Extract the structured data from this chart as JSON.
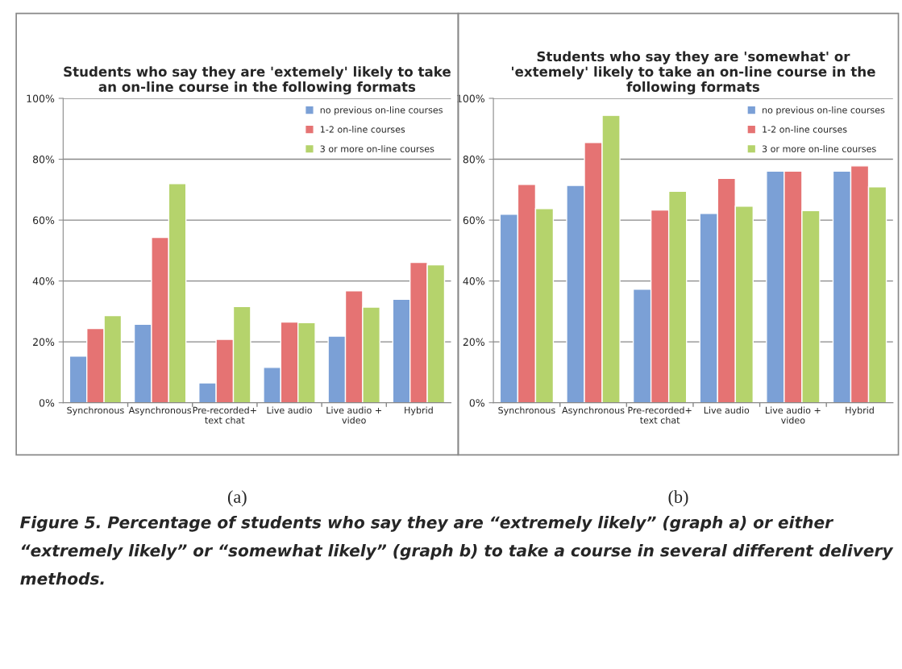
{
  "chart_data": [
    {
      "type": "bar",
      "title": "Students who say they are 'extemely' likely to take\nan on-line course in the following formats",
      "categories": [
        "Synchronous",
        "Asynchronous",
        "Pre-recorded+\ntext chat",
        "Live audio",
        "Live audio +\nvideo",
        "Hybrid"
      ],
      "series": [
        {
          "name": "no previous on-line courses",
          "color": "#7ba0d6",
          "values": [
            15.3,
            25.8,
            6.5,
            11.6,
            21.9,
            34
          ]
        },
        {
          "name": "1-2 on-line courses",
          "color": "#e57373",
          "values": [
            24.4,
            54.3,
            20.8,
            26.5,
            36.8,
            46.1
          ]
        },
        {
          "name": "3 or more on-line courses",
          "color": "#b5d36c",
          "values": [
            28.6,
            72,
            31.6,
            26.3,
            31.4,
            45.3
          ]
        }
      ],
      "ylim": [
        0,
        100
      ],
      "yticks": [
        {
          "value": 0,
          "label": "0%"
        },
        {
          "value": 20,
          "label": "20%"
        },
        {
          "value": 40,
          "label": "40%"
        },
        {
          "value": 60,
          "label": "60%"
        },
        {
          "value": 80,
          "label": "80%"
        },
        {
          "value": 100,
          "label": "100%"
        }
      ],
      "grid": "y",
      "legend": "top right",
      "annotations": [
        "(a)",
        "Figure 5. Percentage of students who say they are “extremely likely” (graph a) or either “extremely likely” or “somewhat likely” (graph b) to take a course in several different delivery methods."
      ]
    },
    {
      "type": "bar",
      "title": "Students who say they are 'somewhat' or\n'extemely' likely to take an on-line course in the\nfollowing formats",
      "categories": [
        "Synchronous",
        "Asynchronous",
        "Pre-recorded+\ntext chat",
        "Live audio",
        "Live audio +\nvideo",
        "Hybrid"
      ],
      "series": [
        {
          "name": "no previous on-line courses",
          "color": "#7ba0d6",
          "values": [
            61.9,
            71.4,
            37.3,
            62.2,
            76.1,
            76.1
          ]
        },
        {
          "name": "1-2 on-line courses",
          "color": "#e57373",
          "values": [
            71.7,
            85.5,
            63.3,
            73.7,
            76.1,
            77.8
          ]
        },
        {
          "name": "3 or more on-line courses",
          "color": "#b5d36c",
          "values": [
            63.8,
            94.4,
            69.5,
            64.6,
            63.1,
            70.9
          ]
        }
      ],
      "ylim": [
        0,
        100
      ],
      "yticks": [
        {
          "value": 0,
          "label": "0%"
        },
        {
          "value": 20,
          "label": "20%"
        },
        {
          "value": 40,
          "label": "40%"
        },
        {
          "value": 60,
          "label": "60%"
        },
        {
          "value": 80,
          "label": "80%"
        },
        {
          "value": 100,
          "label": "100%"
        }
      ],
      "grid": "y",
      "legend": "top right",
      "annotations": [
        "(b)"
      ]
    }
  ]
}
